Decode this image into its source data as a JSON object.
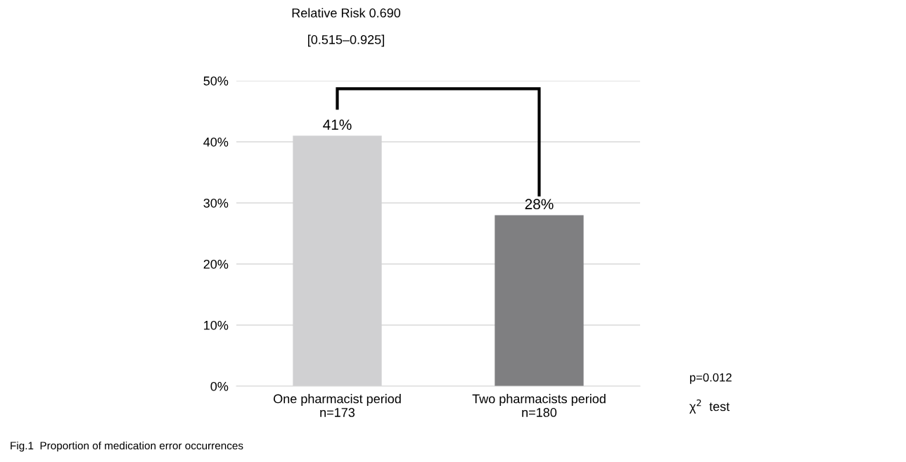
{
  "chart_data": {
    "type": "bar",
    "title": "Relative Risk 0.690",
    "subtitle": "[0.515–0.925]",
    "categories": [
      "One pharmacist period\nn=173",
      "Two pharmacists period\nn=180"
    ],
    "values": [
      41,
      28
    ],
    "colors": [
      "#d0d0d2",
      "#7f7f81"
    ],
    "value_labels": [
      "41%",
      "28%"
    ],
    "ylim": [
      0,
      50
    ],
    "yticks": [
      {
        "value": 0,
        "label": "0%"
      },
      {
        "value": 10,
        "label": "10%"
      },
      {
        "value": 20,
        "label": "20%"
      },
      {
        "value": 30,
        "label": "30%"
      },
      {
        "value": 40,
        "label": "40%"
      },
      {
        "value": 50,
        "label": "50%"
      }
    ],
    "grid": "y",
    "annotations": [
      "p=0.012",
      "χ$^{2}$  test",
      "Fig.1  Proportion of medication error occurrences"
    ]
  }
}
